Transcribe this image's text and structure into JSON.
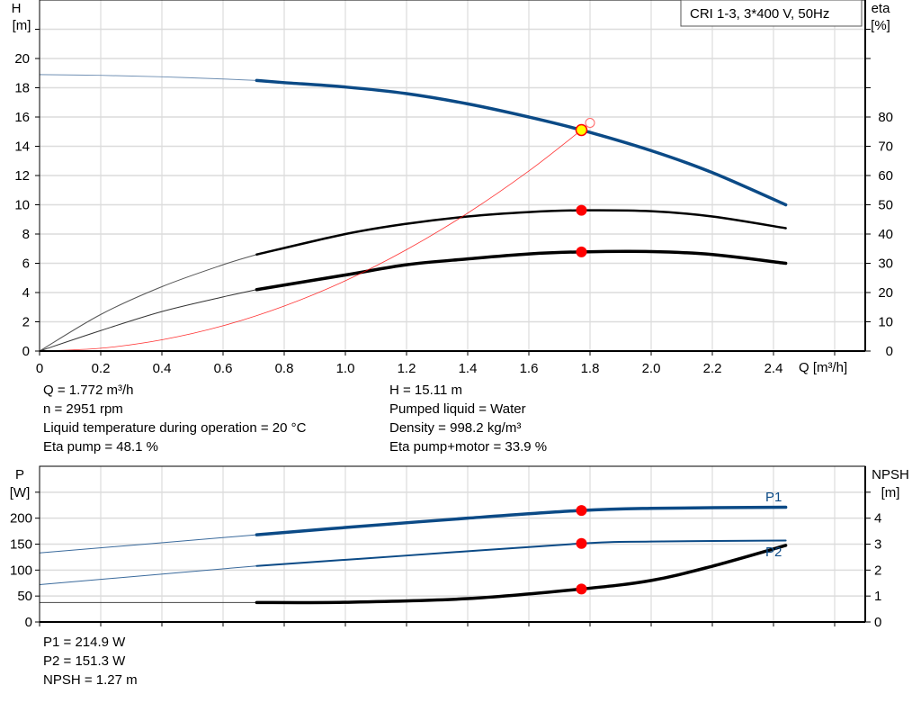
{
  "chart_data": [
    {
      "type": "line",
      "title": "CRI 1-3, 3*400 V, 50Hz",
      "xlabel": "Q [m³/h]",
      "ylabel_left": [
        "H",
        "[m]"
      ],
      "ylabel_right": [
        "eta",
        "[%]"
      ],
      "xlim": [
        0,
        2.7
      ],
      "ylim_left": [
        0,
        24
      ],
      "ylim_right": [
        0,
        120
      ],
      "x_ticks": [
        "0",
        "0.2",
        "0.4",
        "0.6",
        "0.8",
        "1.0",
        "1.2",
        "1.4",
        "1.6",
        "1.8",
        "2.0",
        "2.2",
        "2.4"
      ],
      "y_ticks_left": [
        "0",
        "2",
        "4",
        "6",
        "8",
        "10",
        "12",
        "14",
        "16",
        "18",
        "20"
      ],
      "y_ticks_right": [
        "0",
        "10",
        "20",
        "30",
        "40",
        "50",
        "60",
        "70",
        "80"
      ],
      "grid": true,
      "series": [
        {
          "axis": "left",
          "color": "#0b4a86",
          "x": [
            0,
            0.2,
            0.4,
            0.6,
            0.71,
            0.8,
            1.0,
            1.2,
            1.4,
            1.6,
            1.772,
            2.0,
            2.2,
            2.44
          ],
          "y": [
            18.9,
            18.85,
            18.75,
            18.6,
            18.5,
            18.35,
            18.05,
            17.6,
            16.9,
            16.0,
            15.11,
            13.7,
            12.2,
            10.0
          ]
        },
        {
          "axis": "right",
          "color": "#000000",
          "x": [
            0,
            0.2,
            0.4,
            0.6,
            0.71,
            1.0,
            1.2,
            1.4,
            1.6,
            1.772,
            2.0,
            2.2,
            2.44
          ],
          "y": [
            0,
            12.5,
            22,
            29.5,
            33,
            40,
            43.5,
            46,
            47.5,
            48.1,
            47.8,
            46,
            42
          ]
        },
        {
          "axis": "right",
          "color": "#000000",
          "x": [
            0,
            0.2,
            0.4,
            0.6,
            0.71,
            1.0,
            1.2,
            1.4,
            1.6,
            1.772,
            2.0,
            2.2,
            2.44
          ],
          "y": [
            0,
            7,
            13.5,
            18.5,
            21,
            26,
            29.5,
            31.5,
            33.2,
            33.9,
            34,
            33,
            30
          ]
        },
        {
          "axis": "left",
          "color": "#ff0000",
          "x": [
            0,
            0.2,
            0.4,
            0.6,
            0.8,
            1.0,
            1.2,
            1.4,
            1.6,
            1.772
          ],
          "y": [
            0,
            0.19,
            0.77,
            1.73,
            3.08,
            4.81,
            6.93,
            9.43,
            12.31,
            15.11
          ]
        }
      ],
      "duty_point": {
        "Q": 1.772,
        "H": 15.11,
        "eta_pump": 48.1,
        "eta_total": 33.9
      },
      "open_marker": {
        "Q": 1.8,
        "H": 15.6
      }
    },
    {
      "type": "line",
      "ylabel_left": [
        "P",
        "[W]"
      ],
      "ylabel_right": [
        "NPSH",
        "[m]"
      ],
      "xlim": [
        0,
        2.7
      ],
      "ylim_left": [
        0,
        300
      ],
      "ylim_right": [
        0,
        6
      ],
      "y_ticks_left": [
        "0",
        "50",
        "100",
        "150",
        "200"
      ],
      "y_ticks_right": [
        "0",
        "1",
        "2",
        "3",
        "4"
      ],
      "grid": true,
      "series": [
        {
          "name": "P1",
          "axis": "left",
          "color": "#0b4a86",
          "x": [
            0,
            0.71,
            1.0,
            1.4,
            1.772,
            2.0,
            2.44
          ],
          "y": [
            133,
            168,
            182,
            200,
            214.9,
            219,
            221
          ]
        },
        {
          "name": "P2",
          "axis": "left",
          "color": "#0b4a86",
          "x": [
            0,
            0.71,
            1.2,
            1.772,
            2.0,
            2.44
          ],
          "y": [
            72,
            108,
            128,
            151.3,
            155,
            157
          ]
        },
        {
          "axis": "right",
          "color": "#000000",
          "x": [
            0,
            0.71,
            1.0,
            1.4,
            1.772,
            2.0,
            2.2,
            2.44
          ],
          "y": [
            0.75,
            0.75,
            0.76,
            0.9,
            1.27,
            1.6,
            2.15,
            2.95
          ]
        }
      ],
      "duty_point": {
        "Q": 1.772,
        "P1": 214.9,
        "P2": 151.3,
        "NPSH": 1.27
      }
    }
  ],
  "info_top_left": [
    "Q = 1.772 m³/h",
    "n = 2951 rpm",
    "Liquid temperature during operation = 20 °C",
    "Eta pump = 48.1 %"
  ],
  "info_top_right": [
    "H = 15.11 m",
    "Pumped liquid = Water",
    "Density = 998.2 kg/m³",
    "Eta pump+motor = 33.9 %"
  ],
  "info_bottom": [
    "P1 = 214.9 W",
    "P2 = 151.3 W",
    "NPSH = 1.27 m"
  ]
}
